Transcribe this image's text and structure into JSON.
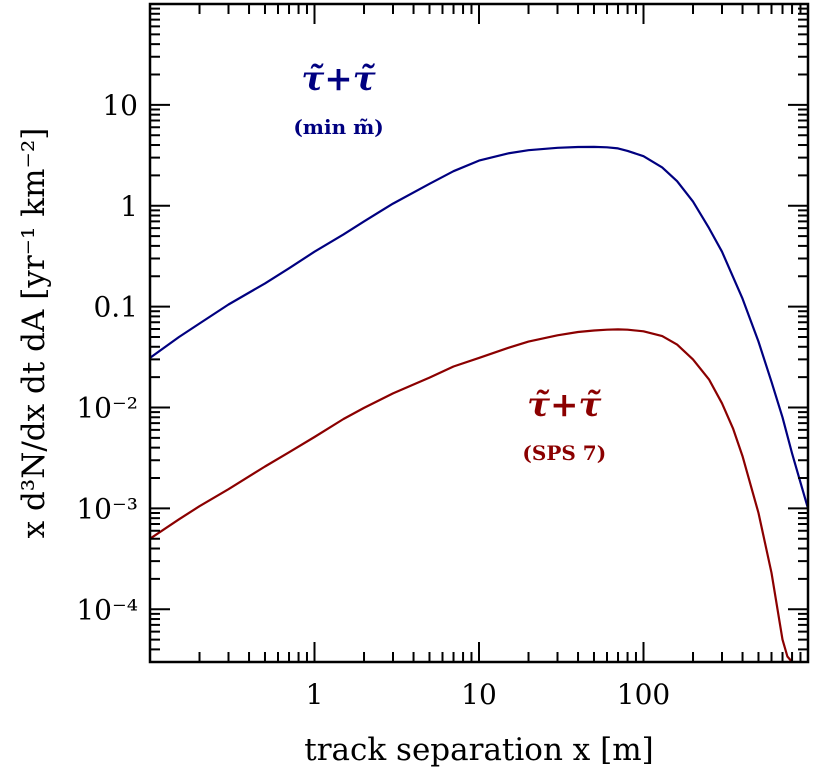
{
  "chart_data": {
    "type": "line",
    "title": "",
    "xlabel": "track separation x [m]",
    "ylabel": "x d³N/dx dt dA [yr⁻¹ km⁻²]",
    "xscale": "log",
    "yscale": "log",
    "xlim": [
      0.1,
      1000
    ],
    "ylim": [
      3e-05,
      100
    ],
    "grid": false,
    "x_ticks": [
      {
        "value": 1,
        "label": "1"
      },
      {
        "value": 10,
        "label": "10"
      },
      {
        "value": 100,
        "label": "100"
      }
    ],
    "y_ticks": [
      {
        "value": 10,
        "label": "10"
      },
      {
        "value": 1,
        "label": "1"
      },
      {
        "value": 0.1,
        "label": "0.1"
      },
      {
        "value": 0.01,
        "label": "10⁻²"
      },
      {
        "value": 0.001,
        "label": "10⁻³"
      },
      {
        "value": 0.0001,
        "label": "10⁻⁴"
      }
    ],
    "series": [
      {
        "color": "#000080",
        "x": [
          0.1,
          0.15,
          0.2,
          0.3,
          0.5,
          0.7,
          1,
          1.5,
          2,
          3,
          5,
          7,
          10,
          15,
          20,
          30,
          40,
          50,
          60,
          70,
          80,
          100,
          130,
          160,
          200,
          250,
          300,
          400,
          500,
          600,
          700,
          800,
          900,
          1000
        ],
        "y": [
          0.031,
          0.05,
          0.068,
          0.105,
          0.17,
          0.24,
          0.35,
          0.52,
          0.7,
          1.05,
          1.65,
          2.2,
          2.8,
          3.3,
          3.55,
          3.75,
          3.82,
          3.83,
          3.8,
          3.7,
          3.5,
          3.1,
          2.4,
          1.75,
          1.1,
          0.6,
          0.35,
          0.12,
          0.045,
          0.018,
          0.008,
          0.0035,
          0.0018,
          0.001
        ]
      },
      {
        "color": "#8B0000",
        "x": [
          0.1,
          0.15,
          0.2,
          0.3,
          0.5,
          0.7,
          1,
          1.5,
          2,
          3,
          5,
          7,
          10,
          15,
          20,
          30,
          40,
          50,
          60,
          70,
          80,
          100,
          130,
          160,
          200,
          250,
          300,
          350,
          400,
          500,
          600,
          700,
          750,
          800
        ],
        "y": [
          0.0005,
          0.00078,
          0.00105,
          0.00155,
          0.0026,
          0.0036,
          0.0051,
          0.0077,
          0.0099,
          0.0138,
          0.0198,
          0.0255,
          0.031,
          0.039,
          0.045,
          0.052,
          0.056,
          0.058,
          0.059,
          0.0595,
          0.059,
          0.057,
          0.051,
          0.042,
          0.03,
          0.019,
          0.011,
          0.0062,
          0.0033,
          0.0009,
          0.00023,
          5e-05,
          3.4e-05,
          3e-05
        ]
      }
    ],
    "annotations": [
      {
        "text": "τ̃+τ̃",
        "subtext": "(min m̃)",
        "color": "#000080",
        "x": 1.4,
        "y": 14
      },
      {
        "text": "τ̃+τ̃",
        "subtext": "(SPS 7)",
        "color": "#8B0000",
        "x": 33,
        "y": 0.0082
      }
    ]
  }
}
